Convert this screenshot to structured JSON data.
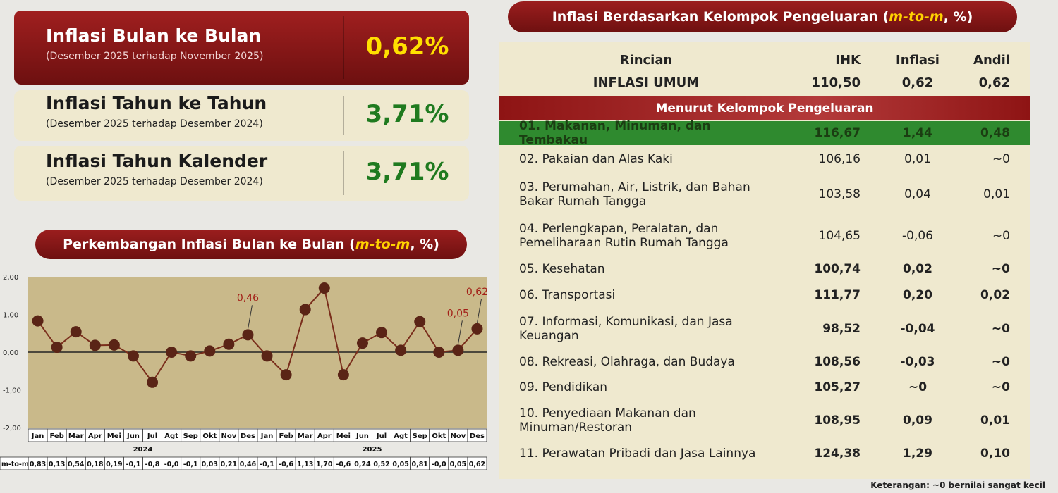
{
  "summary": [
    {
      "title": "Inflasi Bulan ke Bulan",
      "subtitle": "(Desember 2025 terhadap November 2025)",
      "value": "0,62%"
    },
    {
      "title": "Inflasi Tahun ke Tahun",
      "subtitle": "(Desember 2025 terhadap Desember 2024)",
      "value": "3,71%"
    },
    {
      "title": "Inflasi Tahun Kalender",
      "subtitle": "(Desember 2025 terhadap Desember 2024)",
      "value": "3,71%"
    }
  ],
  "chart_data": {
    "type": "line",
    "title": [
      "Perkembangan Inflasi Bulan ke Bulan (",
      "m-to-m",
      ", %)"
    ],
    "categories": [
      "Jan",
      "Feb",
      "Mar",
      "Apr",
      "Mei",
      "Jun",
      "Jul",
      "Agt",
      "Sep",
      "Okt",
      "Nov",
      "Des",
      "Jan",
      "Feb",
      "Mar",
      "Apr",
      "Mei",
      "Jun",
      "Jul",
      "Agt",
      "Sep",
      "Okt",
      "Nov",
      "Des"
    ],
    "year_groups": [
      "2024",
      "2025"
    ],
    "row_label": "m-to-m",
    "values": [
      0.83,
      0.13,
      0.54,
      0.18,
      0.19,
      -0.1,
      -0.8,
      0,
      -0.1,
      0.03,
      0.21,
      0.46,
      -0.1,
      -0.6,
      1.13,
      1.7,
      -0.6,
      0.24,
      0.52,
      0.05,
      0.81,
      0,
      0.05,
      0.62
    ],
    "value_labels": [
      "0,83",
      "0,13",
      "0,54",
      "0,18",
      "0,19",
      "-0,1",
      "-0,8",
      "-0,0",
      "-0,1",
      "0,03",
      "0,21",
      "0,46",
      "-0,1",
      "-0,6",
      "1,13",
      "1,70",
      "-0,6",
      "0,24",
      "0,52",
      "0,05",
      "0,81",
      "-0,0",
      "0,05",
      "0,62"
    ],
    "point_labels": [
      null,
      null,
      null,
      null,
      null,
      null,
      null,
      null,
      null,
      null,
      null,
      "0,46",
      null,
      null,
      null,
      null,
      null,
      null,
      null,
      null,
      null,
      null,
      "0,05",
      "0,62"
    ],
    "color": "#7a2e1c",
    "ylim": [
      -2,
      2
    ],
    "yticks": [
      {
        "value": 2,
        "label": "2,00"
      },
      {
        "value": 1,
        "label": "1,00"
      },
      {
        "value": 0,
        "label": "0,00"
      },
      {
        "value": -1,
        "label": "-1,00"
      },
      {
        "value": -2,
        "label": "-2,00"
      }
    ]
  },
  "table": {
    "title": [
      "Inflasi Berdasarkan Kelompok Pengeluaran (",
      "m-to-m",
      ", %)"
    ],
    "header": [
      "Rincian",
      "IHK",
      "Inflasi",
      "Andil"
    ],
    "total": [
      "INFLASI UMUM",
      "110,50",
      "0,62",
      "0,62"
    ],
    "section": "Menurut Kelompok Pengeluaran",
    "rows": [
      [
        "01. Makanan, Minuman, dan Tembakau",
        "116,67",
        "1,44",
        "0,48"
      ],
      [
        "02. Pakaian dan Alas Kaki",
        "106,16",
        "0,01",
        "~0"
      ],
      [
        "03. Perumahan, Air, Listrik, dan Bahan Bakar Rumah Tangga",
        "103,58",
        "0,04",
        "0,01"
      ],
      [
        "04. Perlengkapan, Peralatan, dan Pemeliharaan Rutin Rumah Tangga",
        "104,65",
        "-0,06",
        "~0"
      ],
      [
        "05. Kesehatan",
        "100,74",
        "0,02",
        "~0"
      ],
      [
        "06. Transportasi",
        "111,77",
        "0,20",
        "0,02"
      ],
      [
        "07. Informasi, Komunikasi, dan Jasa Keuangan",
        "98,52",
        "-0,04",
        "~0"
      ],
      [
        "08. Rekreasi, Olahraga, dan Budaya",
        "108,56",
        "-0,03",
        "~0"
      ],
      [
        "09. Pendidikan",
        "105,27",
        "~0",
        "~0"
      ],
      [
        "10. Penyediaan Makanan dan Minuman/Restoran",
        "108,95",
        "0,09",
        "0,01"
      ],
      [
        "11. Perawatan Pribadi dan Jasa Lainnya",
        "124,38",
        "1,29",
        "0,10"
      ]
    ],
    "note": "Keterangan: ~0 bernilai sangat kecil"
  }
}
